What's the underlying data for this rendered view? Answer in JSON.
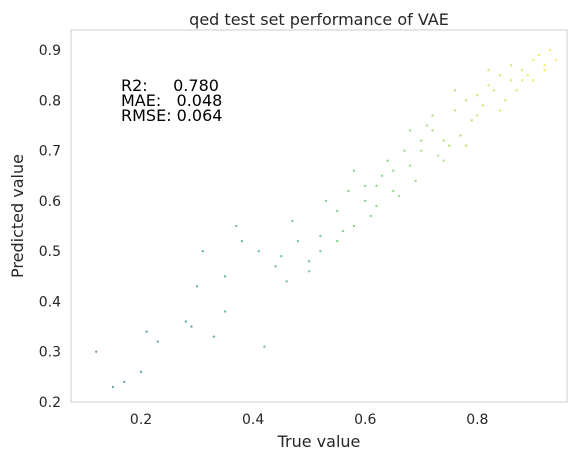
{
  "chart_data": {
    "type": "scatter",
    "title": "qed test set performance of VAE",
    "xlabel": "True value",
    "ylabel": "Predicted value",
    "xlim": [
      0.075,
      0.96
    ],
    "ylim": [
      0.2,
      0.94
    ],
    "xticks": [
      0.2,
      0.4,
      0.6,
      0.8
    ],
    "xtick_labels": [
      "0.2",
      "0.4",
      "0.6",
      "0.8"
    ],
    "yticks": [
      0.2,
      0.3,
      0.4,
      0.5,
      0.6,
      0.7,
      0.8,
      0.9
    ],
    "ytick_labels": [
      "0.2",
      "0.3",
      "0.4",
      "0.5",
      "0.6",
      "0.7",
      "0.8",
      "0.9"
    ],
    "grid": false,
    "colormap": "viridis (colored by true value)",
    "stats_lines": [
      "R2:     0.780",
      "MAE:   0.048",
      "RMSE: 0.064"
    ],
    "points_x": [
      0.12,
      0.15,
      0.17,
      0.2,
      0.21,
      0.23,
      0.28,
      0.29,
      0.3,
      0.33,
      0.35,
      0.42,
      0.37,
      0.5,
      0.52,
      0.38,
      0.31,
      0.44,
      0.48,
      0.55,
      0.58,
      0.6,
      0.62,
      0.65,
      0.68,
      0.7,
      0.72,
      0.74,
      0.76,
      0.78,
      0.8,
      0.82,
      0.84,
      0.86,
      0.88,
      0.9,
      0.92,
      0.93,
      0.57,
      0.64,
      0.71,
      0.77,
      0.83,
      0.89,
      0.46,
      0.53,
      0.61,
      0.67,
      0.73,
      0.79,
      0.85,
      0.91,
      0.35,
      0.41,
      0.47,
      0.56,
      0.63,
      0.69,
      0.75,
      0.81,
      0.87,
      0.94,
      0.58,
      0.66,
      0.74,
      0.82,
      0.9,
      0.52,
      0.6,
      0.68,
      0.76,
      0.84,
      0.62,
      0.7,
      0.78,
      0.86,
      0.45,
      0.5,
      0.55,
      0.65,
      0.72,
      0.8,
      0.88,
      0.92
    ],
    "points_y": [
      0.3,
      0.23,
      0.24,
      0.26,
      0.34,
      0.32,
      0.36,
      0.35,
      0.43,
      0.33,
      0.45,
      0.31,
      0.55,
      0.46,
      0.5,
      0.52,
      0.5,
      0.47,
      0.52,
      0.58,
      0.55,
      0.6,
      0.63,
      0.66,
      0.67,
      0.7,
      0.74,
      0.72,
      0.78,
      0.8,
      0.77,
      0.83,
      0.85,
      0.84,
      0.86,
      0.88,
      0.87,
      0.9,
      0.62,
      0.68,
      0.75,
      0.73,
      0.82,
      0.85,
      0.44,
      0.6,
      0.57,
      0.7,
      0.69,
      0.76,
      0.8,
      0.89,
      0.38,
      0.5,
      0.56,
      0.54,
      0.65,
      0.64,
      0.71,
      0.79,
      0.82,
      0.88,
      0.66,
      0.61,
      0.68,
      0.86,
      0.84,
      0.53,
      0.63,
      0.74,
      0.82,
      0.78,
      0.59,
      0.72,
      0.71,
      0.87,
      0.49,
      0.48,
      0.52,
      0.62,
      0.77,
      0.81,
      0.84,
      0.86
    ]
  }
}
